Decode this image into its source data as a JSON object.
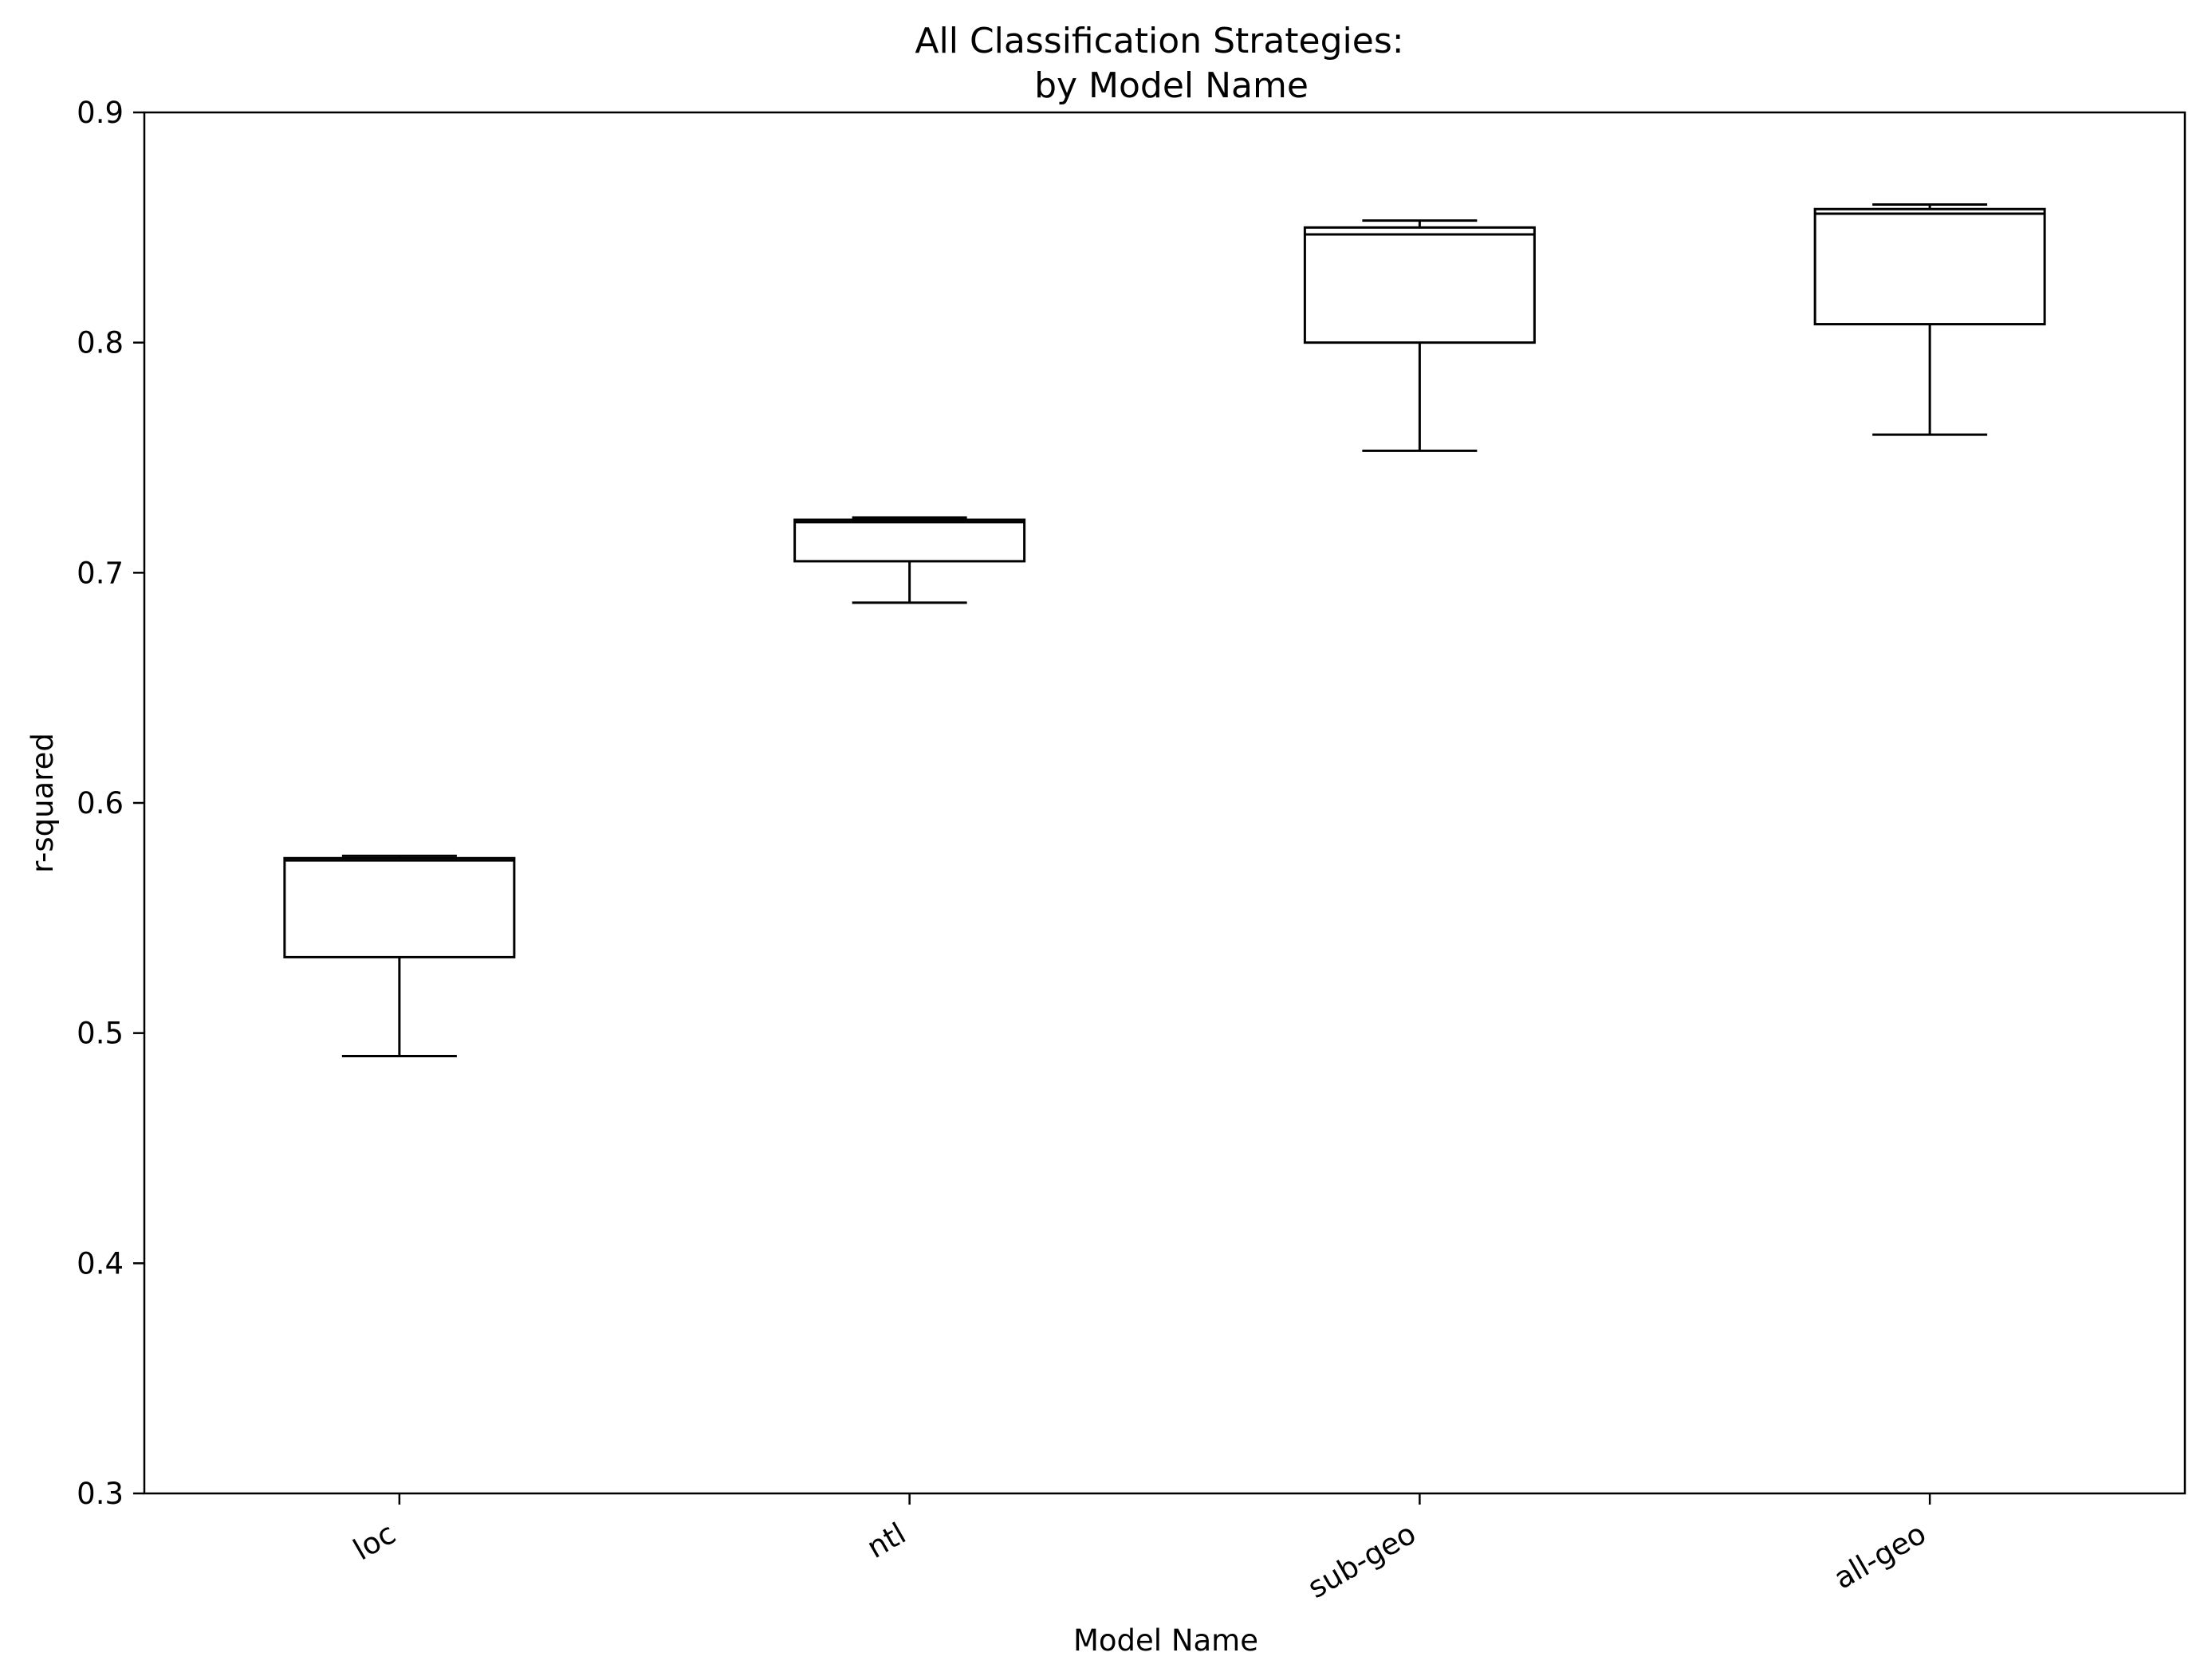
{
  "chart_data": {
    "type": "box",
    "title": "All Classification Strategies:",
    "subtitle": "by Model Name",
    "xlabel": "Model Name",
    "ylabel": "r-squared",
    "ylim": [
      0.3,
      0.9
    ],
    "yticks": [
      "0.3",
      "0.4",
      "0.5",
      "0.6",
      "0.7",
      "0.8",
      "0.9"
    ],
    "categories": [
      "loc",
      "ntl",
      "sub-geo",
      "all-geo"
    ],
    "series": [
      {
        "boxes": [
          {
            "category": "loc",
            "whisker_low": 0.49,
            "q1": 0.533,
            "median": 0.575,
            "q3": 0.576,
            "whisker_high": 0.577
          },
          {
            "category": "ntl",
            "whisker_low": 0.687,
            "q1": 0.705,
            "median": 0.722,
            "q3": 0.723,
            "whisker_high": 0.724
          },
          {
            "category": "sub-geo",
            "whisker_low": 0.753,
            "q1": 0.8,
            "median": 0.847,
            "q3": 0.85,
            "whisker_high": 0.853
          },
          {
            "category": "all-geo",
            "whisker_low": 0.76,
            "q1": 0.808,
            "median": 0.856,
            "q3": 0.858,
            "whisker_high": 0.86
          }
        ]
      }
    ],
    "grid": false,
    "colors": {
      "box": "#000000",
      "background": "#ffffff"
    }
  }
}
